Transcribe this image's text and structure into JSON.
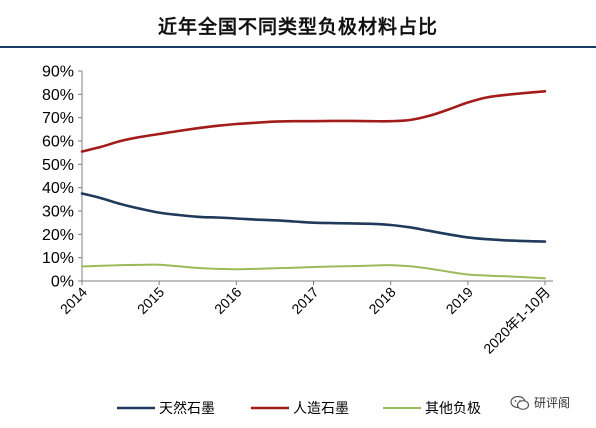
{
  "chart_data": {
    "type": "line",
    "title": "近年全国不同类型负极材料占比",
    "xlabel": "",
    "ylabel": "",
    "ylim": [
      0,
      90
    ],
    "y_ticks": [
      "0%",
      "10%",
      "20%",
      "30%",
      "40%",
      "50%",
      "60%",
      "70%",
      "80%",
      "90%"
    ],
    "categories": [
      "2014",
      "2015",
      "2016",
      "2017",
      "2018",
      "2019",
      "2020年1-10月"
    ],
    "x": [
      0,
      0.25,
      0.5,
      0.75,
      1,
      1.25,
      1.5,
      1.75,
      2,
      2.25,
      2.5,
      2.75,
      3,
      3.25,
      3.5,
      3.75,
      4,
      4.25,
      4.5,
      4.75,
      5,
      5.25,
      5.5,
      5.75,
      6
    ],
    "grid": false,
    "legend_position": "bottom",
    "series": [
      {
        "name": "天然石墨",
        "color": "#1f3a5a",
        "values": [
          37.5,
          35.5,
          33,
          31,
          29.3,
          28.3,
          27.5,
          27.2,
          26.8,
          26.3,
          26,
          25.5,
          25,
          24.8,
          24.7,
          24.5,
          24,
          23,
          21.5,
          20,
          18.7,
          17.9,
          17.4,
          17.1,
          16.9
        ]
      },
      {
        "name": "人造石墨",
        "color": "#a31c1c",
        "values": [
          55.5,
          57.5,
          60,
          61.7,
          63,
          64.3,
          65.5,
          66.5,
          67.3,
          67.8,
          68.3,
          68.5,
          68.5,
          68.6,
          68.6,
          68.5,
          68.5,
          69,
          70.8,
          73.5,
          76.5,
          78.7,
          79.8,
          80.6,
          81.3
        ]
      },
      {
        "name": "其他负极",
        "color": "#9bbb59",
        "values": [
          6.2,
          6.5,
          6.8,
          6.9,
          7,
          6.3,
          5.6,
          5.2,
          5,
          5.2,
          5.5,
          5.7,
          6,
          6.2,
          6.4,
          6.6,
          6.8,
          6.3,
          5.3,
          4,
          2.8,
          2.3,
          2,
          1.6,
          1.2
        ]
      }
    ]
  },
  "watermark": {
    "icon": "wechat-icon",
    "text": "研评阁"
  }
}
